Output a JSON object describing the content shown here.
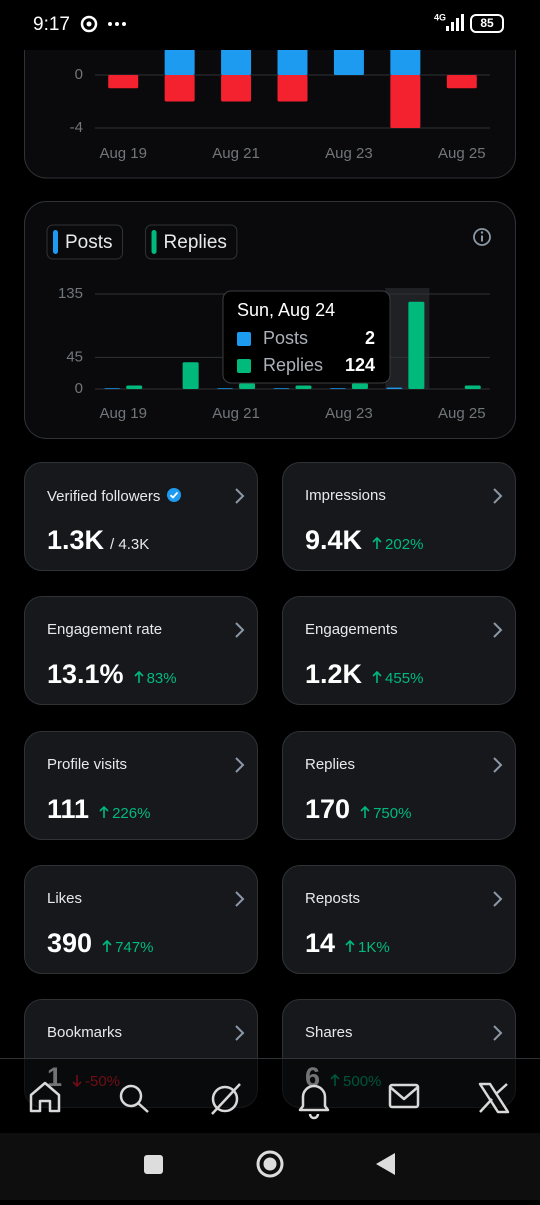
{
  "status_bar": {
    "time": "9:17",
    "network": "4G",
    "battery": "85"
  },
  "chart_data": [
    {
      "type": "bar",
      "categories": [
        "Aug 19",
        null,
        "Aug 21",
        null,
        "Aug 23",
        null,
        "Aug 25"
      ],
      "series": [
        {
          "color": "#1d9bf0",
          "values": [
            0,
            2,
            2,
            2,
            2,
            2,
            0
          ]
        },
        {
          "color": "#f4212e",
          "values": [
            -1,
            -2,
            -2,
            -2,
            0,
            -4,
            -1
          ]
        }
      ],
      "ylim": [
        -4,
        4
      ],
      "yticks": [
        -4,
        0
      ],
      "grid": true
    },
    {
      "type": "bar",
      "categories": [
        "Aug 19",
        null,
        "Aug 21",
        null,
        "Aug 23",
        null,
        "Aug 25"
      ],
      "series": [
        {
          "name": "Posts",
          "color": "#1d9bf0",
          "values": [
            1,
            0,
            1,
            1,
            1,
            2,
            0
          ]
        },
        {
          "name": "Replies",
          "color": "#00ba7c",
          "values": [
            5,
            38,
            8,
            5,
            8,
            124,
            5
          ]
        }
      ],
      "ylim": [
        0,
        135
      ],
      "yticks": [
        0,
        45,
        135
      ],
      "grid": true,
      "legend": "top-left",
      "tooltip": {
        "title": "Sun, Aug 24",
        "category_index": 5
      }
    }
  ],
  "stats": [
    {
      "label": "Verified followers",
      "value": "1.3K",
      "total": "/ 4.3K",
      "verified": true
    },
    {
      "label": "Impressions",
      "value": "9.4K",
      "change": "202%",
      "trend": "up"
    },
    {
      "label": "Engagement rate",
      "value": "13.1%",
      "change": "83%",
      "trend": "up"
    },
    {
      "label": "Engagements",
      "value": "1.2K",
      "change": "455%",
      "trend": "up"
    },
    {
      "label": "Profile visits",
      "value": "111",
      "change": "226%",
      "trend": "up"
    },
    {
      "label": "Replies",
      "value": "170",
      "change": "750%",
      "trend": "up"
    },
    {
      "label": "Likes",
      "value": "390",
      "change": "747%",
      "trend": "up"
    },
    {
      "label": "Reposts",
      "value": "14",
      "change": "1K%",
      "trend": "up"
    },
    {
      "label": "Bookmarks",
      "value": "1",
      "change": "-50%",
      "trend": "down"
    },
    {
      "label": "Shares",
      "value": "6",
      "change": "500%",
      "trend": "up"
    }
  ]
}
